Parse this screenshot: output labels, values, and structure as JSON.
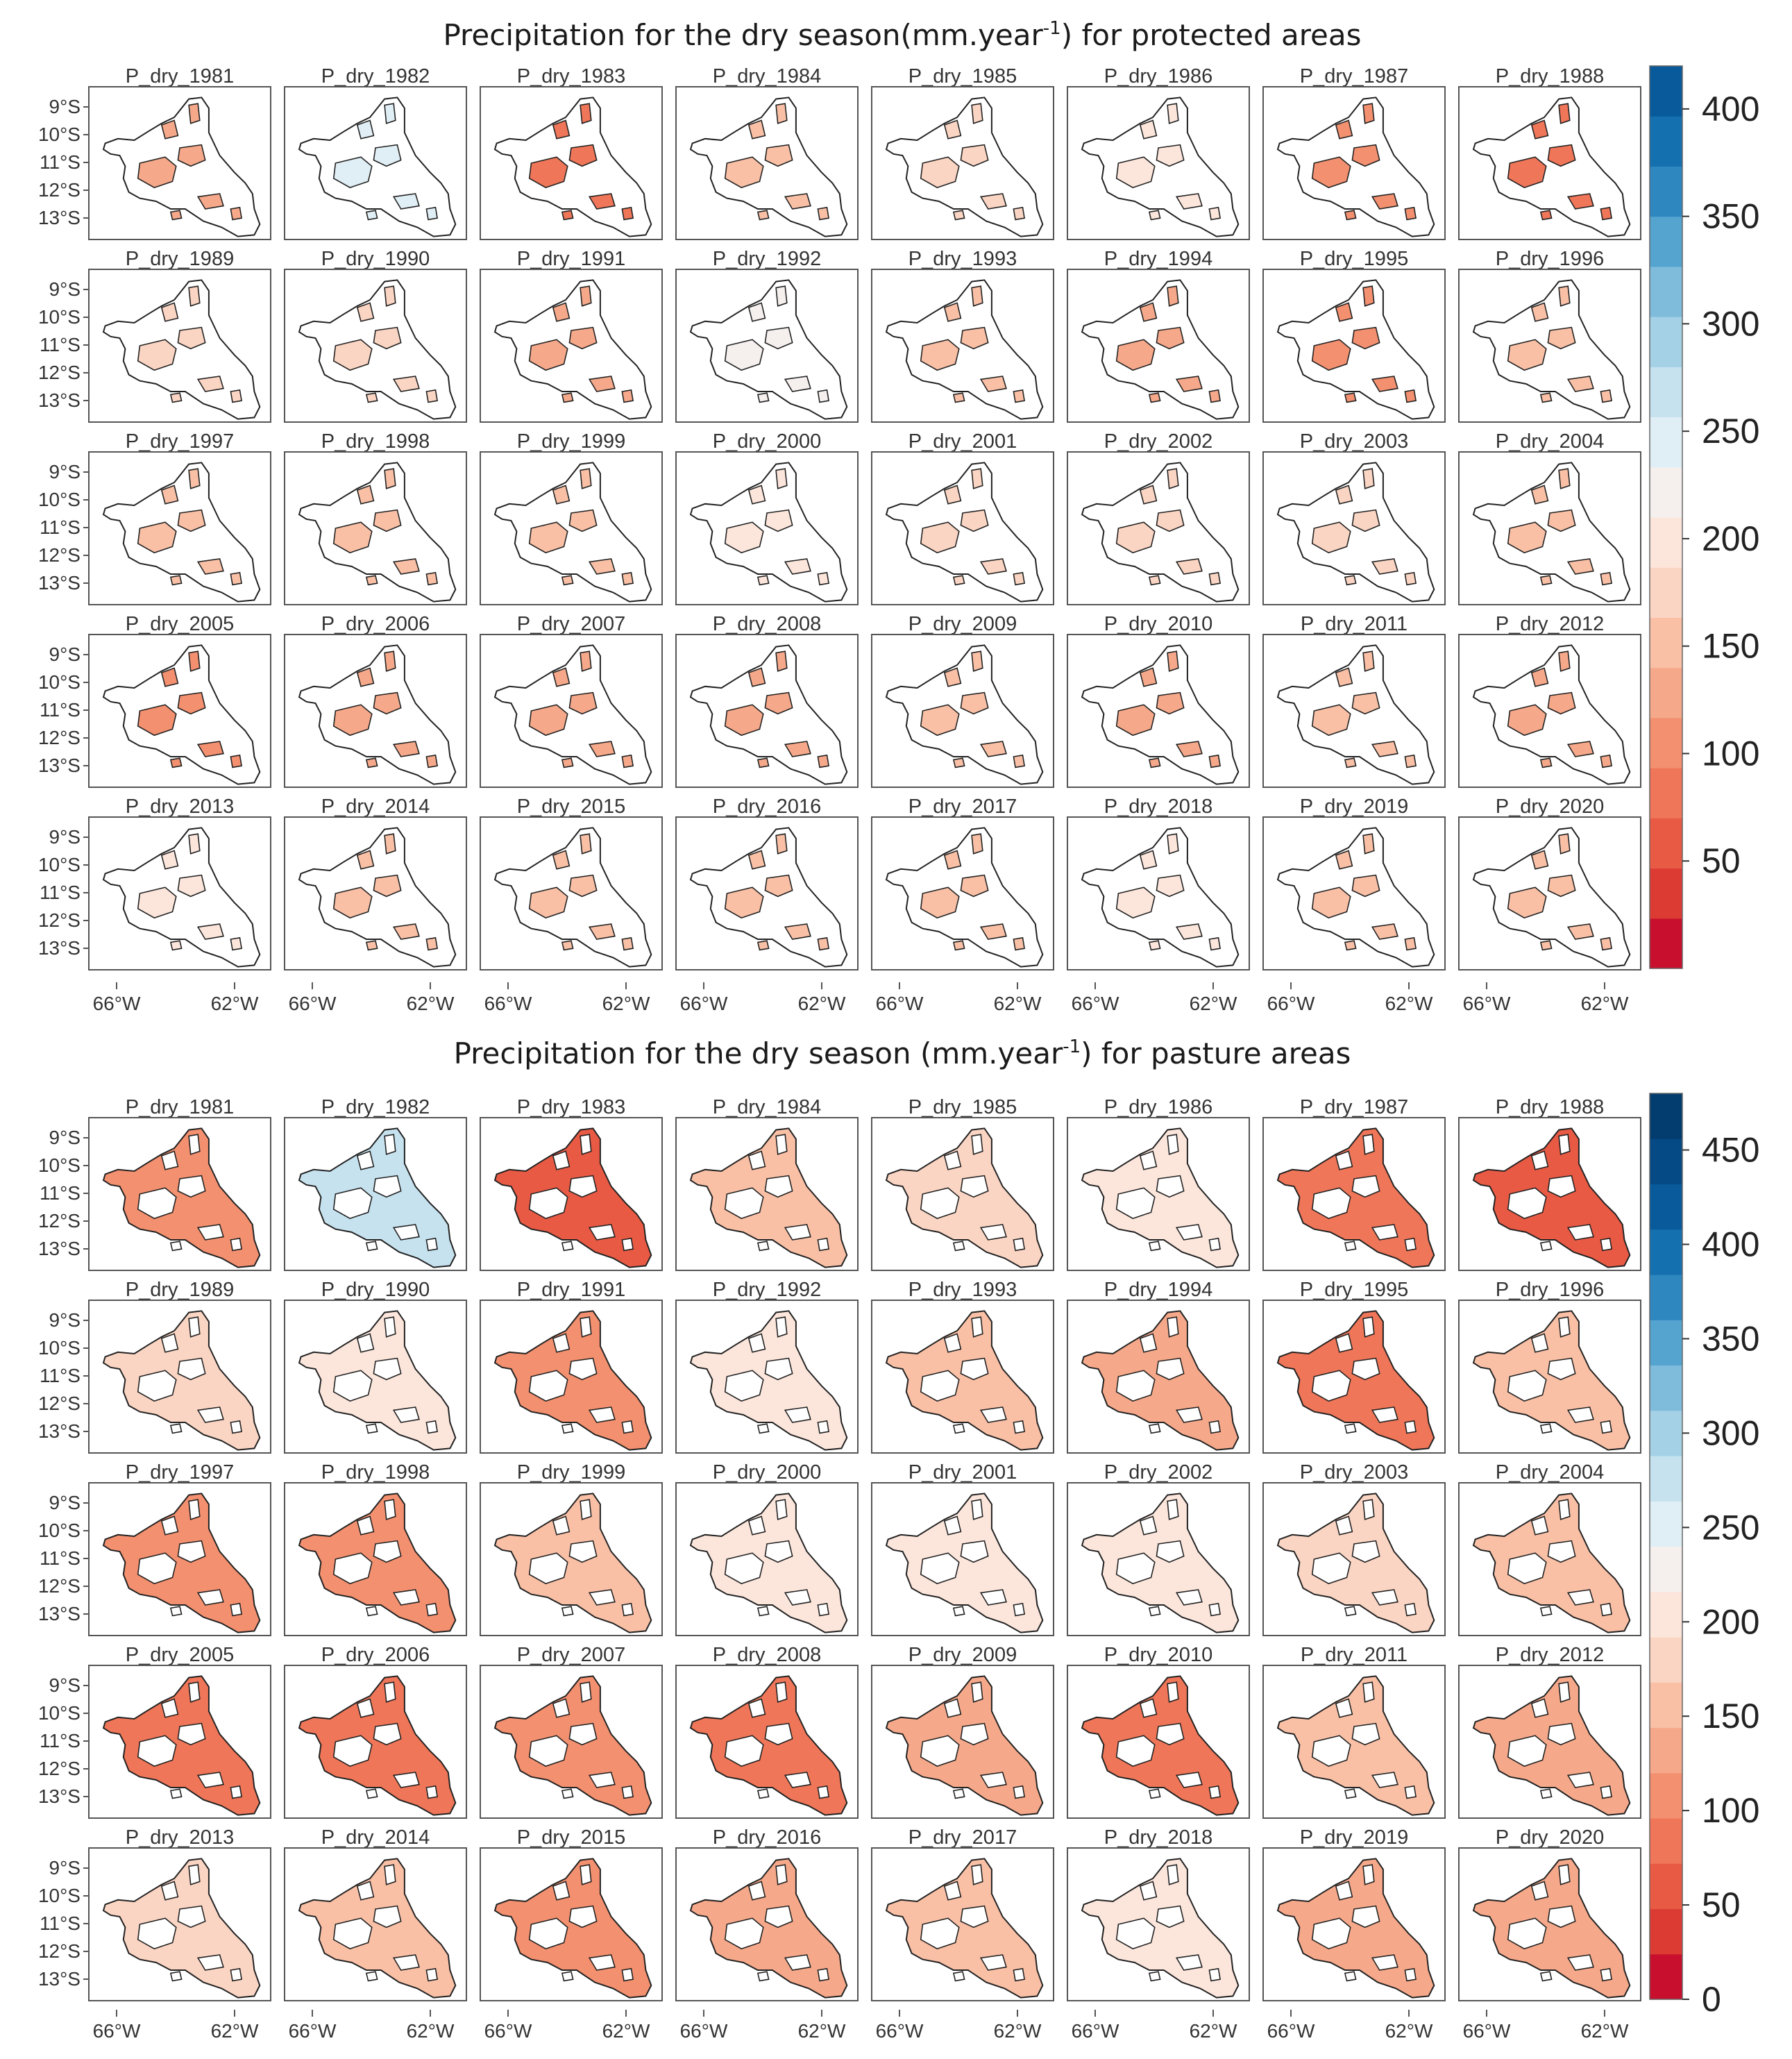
{
  "chart_data": [
    {
      "type": "heatmap",
      "title": "Precipitation for the dry season(mm.year",
      "title_superscript": "-1",
      "title_suffix": ") for protected areas",
      "panel_prefix": "P_dry_",
      "years": [
        "1981",
        "1982",
        "1983",
        "1984",
        "1985",
        "1986",
        "1987",
        "1988",
        "1989",
        "1990",
        "1991",
        "1992",
        "1993",
        "1994",
        "1995",
        "1996",
        "1997",
        "1998",
        "1999",
        "2000",
        "2001",
        "2002",
        "2003",
        "2004",
        "2005",
        "2006",
        "2007",
        "2008",
        "2009",
        "2010",
        "2011",
        "2012",
        "2013",
        "2014",
        "2015",
        "2016",
        "2017",
        "2018",
        "2019",
        "2020"
      ],
      "y_tick_labels": [
        "9°S",
        "10°S",
        "11°S",
        "12°S",
        "13°S"
      ],
      "x_tick_labels": [
        "66°W",
        "62°W"
      ],
      "colorbar": {
        "min": 0,
        "max": 420,
        "ticks": [
          50,
          100,
          150,
          200,
          250,
          300,
          350,
          400
        ],
        "tick_labels": [
          "50",
          "100",
          "150",
          "200",
          "250",
          "300",
          "350",
          "400"
        ],
        "colors": [
          "#c8102e",
          "#dc3b34",
          "#e85a44",
          "#ef7658",
          "#f3906f",
          "#f6a98a",
          "#f9c0a6",
          "#fbd5c3",
          "#fce6dc",
          "#f5f0ee",
          "#e0eef5",
          "#c6e2ef",
          "#a5d1e7",
          "#7fbcdc",
          "#55a3cf",
          "#2f87c0",
          "#1570b0",
          "#085a9b"
        ]
      },
      "panel_mean_values": [
        130,
        255,
        80,
        150,
        180,
        200,
        100,
        85,
        175,
        185,
        135,
        210,
        150,
        130,
        115,
        155,
        150,
        140,
        160,
        205,
        180,
        175,
        175,
        160,
        115,
        135,
        125,
        120,
        150,
        130,
        145,
        135,
        190,
        150,
        145,
        160,
        160,
        200,
        140,
        160
      ]
    },
    {
      "type": "heatmap",
      "title": "Precipitation for the dry season (mm.year",
      "title_superscript": "-1",
      "title_suffix": ") for pasture areas",
      "panel_prefix": "P_dry_",
      "years": [
        "1981",
        "1982",
        "1983",
        "1984",
        "1985",
        "1986",
        "1987",
        "1988",
        "1989",
        "1990",
        "1991",
        "1992",
        "1993",
        "1994",
        "1995",
        "1996",
        "1997",
        "1998",
        "1999",
        "2000",
        "2001",
        "2002",
        "2003",
        "2004",
        "2005",
        "2006",
        "2007",
        "2008",
        "2009",
        "2010",
        "2011",
        "2012",
        "2013",
        "2014",
        "2015",
        "2016",
        "2017",
        "2018",
        "2019",
        "2020"
      ],
      "y_tick_labels": [
        "9°S",
        "10°S",
        "11°S",
        "12°S",
        "13°S"
      ],
      "x_tick_labels": [
        "66°W",
        "62°W"
      ],
      "colorbar": {
        "min": 0,
        "max": 480,
        "ticks": [
          0,
          50,
          100,
          150,
          200,
          250,
          300,
          350,
          400,
          450
        ],
        "tick_labels": [
          "0",
          "50",
          "100",
          "150",
          "200",
          "250",
          "300",
          "350",
          "400",
          "450"
        ],
        "colors": [
          "#c8102e",
          "#dc3b34",
          "#e85a44",
          "#ef7658",
          "#f3906f",
          "#f6a98a",
          "#f9c0a6",
          "#fbd5c3",
          "#fce6dc",
          "#f5f0ee",
          "#e0eef5",
          "#c6e2ef",
          "#a5d1e7",
          "#7fbcdc",
          "#55a3cf",
          "#2f87c0",
          "#1570b0",
          "#085a9b",
          "#054a85",
          "#033d70"
        ]
      },
      "panel_mean_values": [
        115,
        265,
        70,
        155,
        175,
        215,
        85,
        60,
        190,
        195,
        110,
        215,
        165,
        120,
        95,
        155,
        115,
        110,
        160,
        215,
        195,
        195,
        175,
        145,
        85,
        95,
        100,
        85,
        140,
        90,
        145,
        120,
        180,
        145,
        115,
        140,
        150,
        205,
        125,
        140
      ]
    }
  ]
}
